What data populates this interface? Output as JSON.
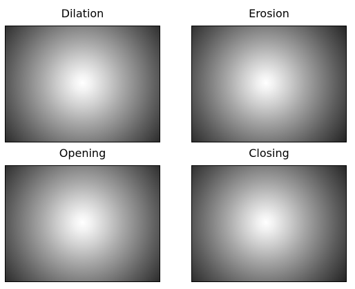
{
  "panels": {
    "dilation": {
      "title": "Dilation"
    },
    "erosion": {
      "title": "Erosion"
    },
    "opening": {
      "title": "Opening"
    },
    "closing": {
      "title": "Closing"
    }
  }
}
